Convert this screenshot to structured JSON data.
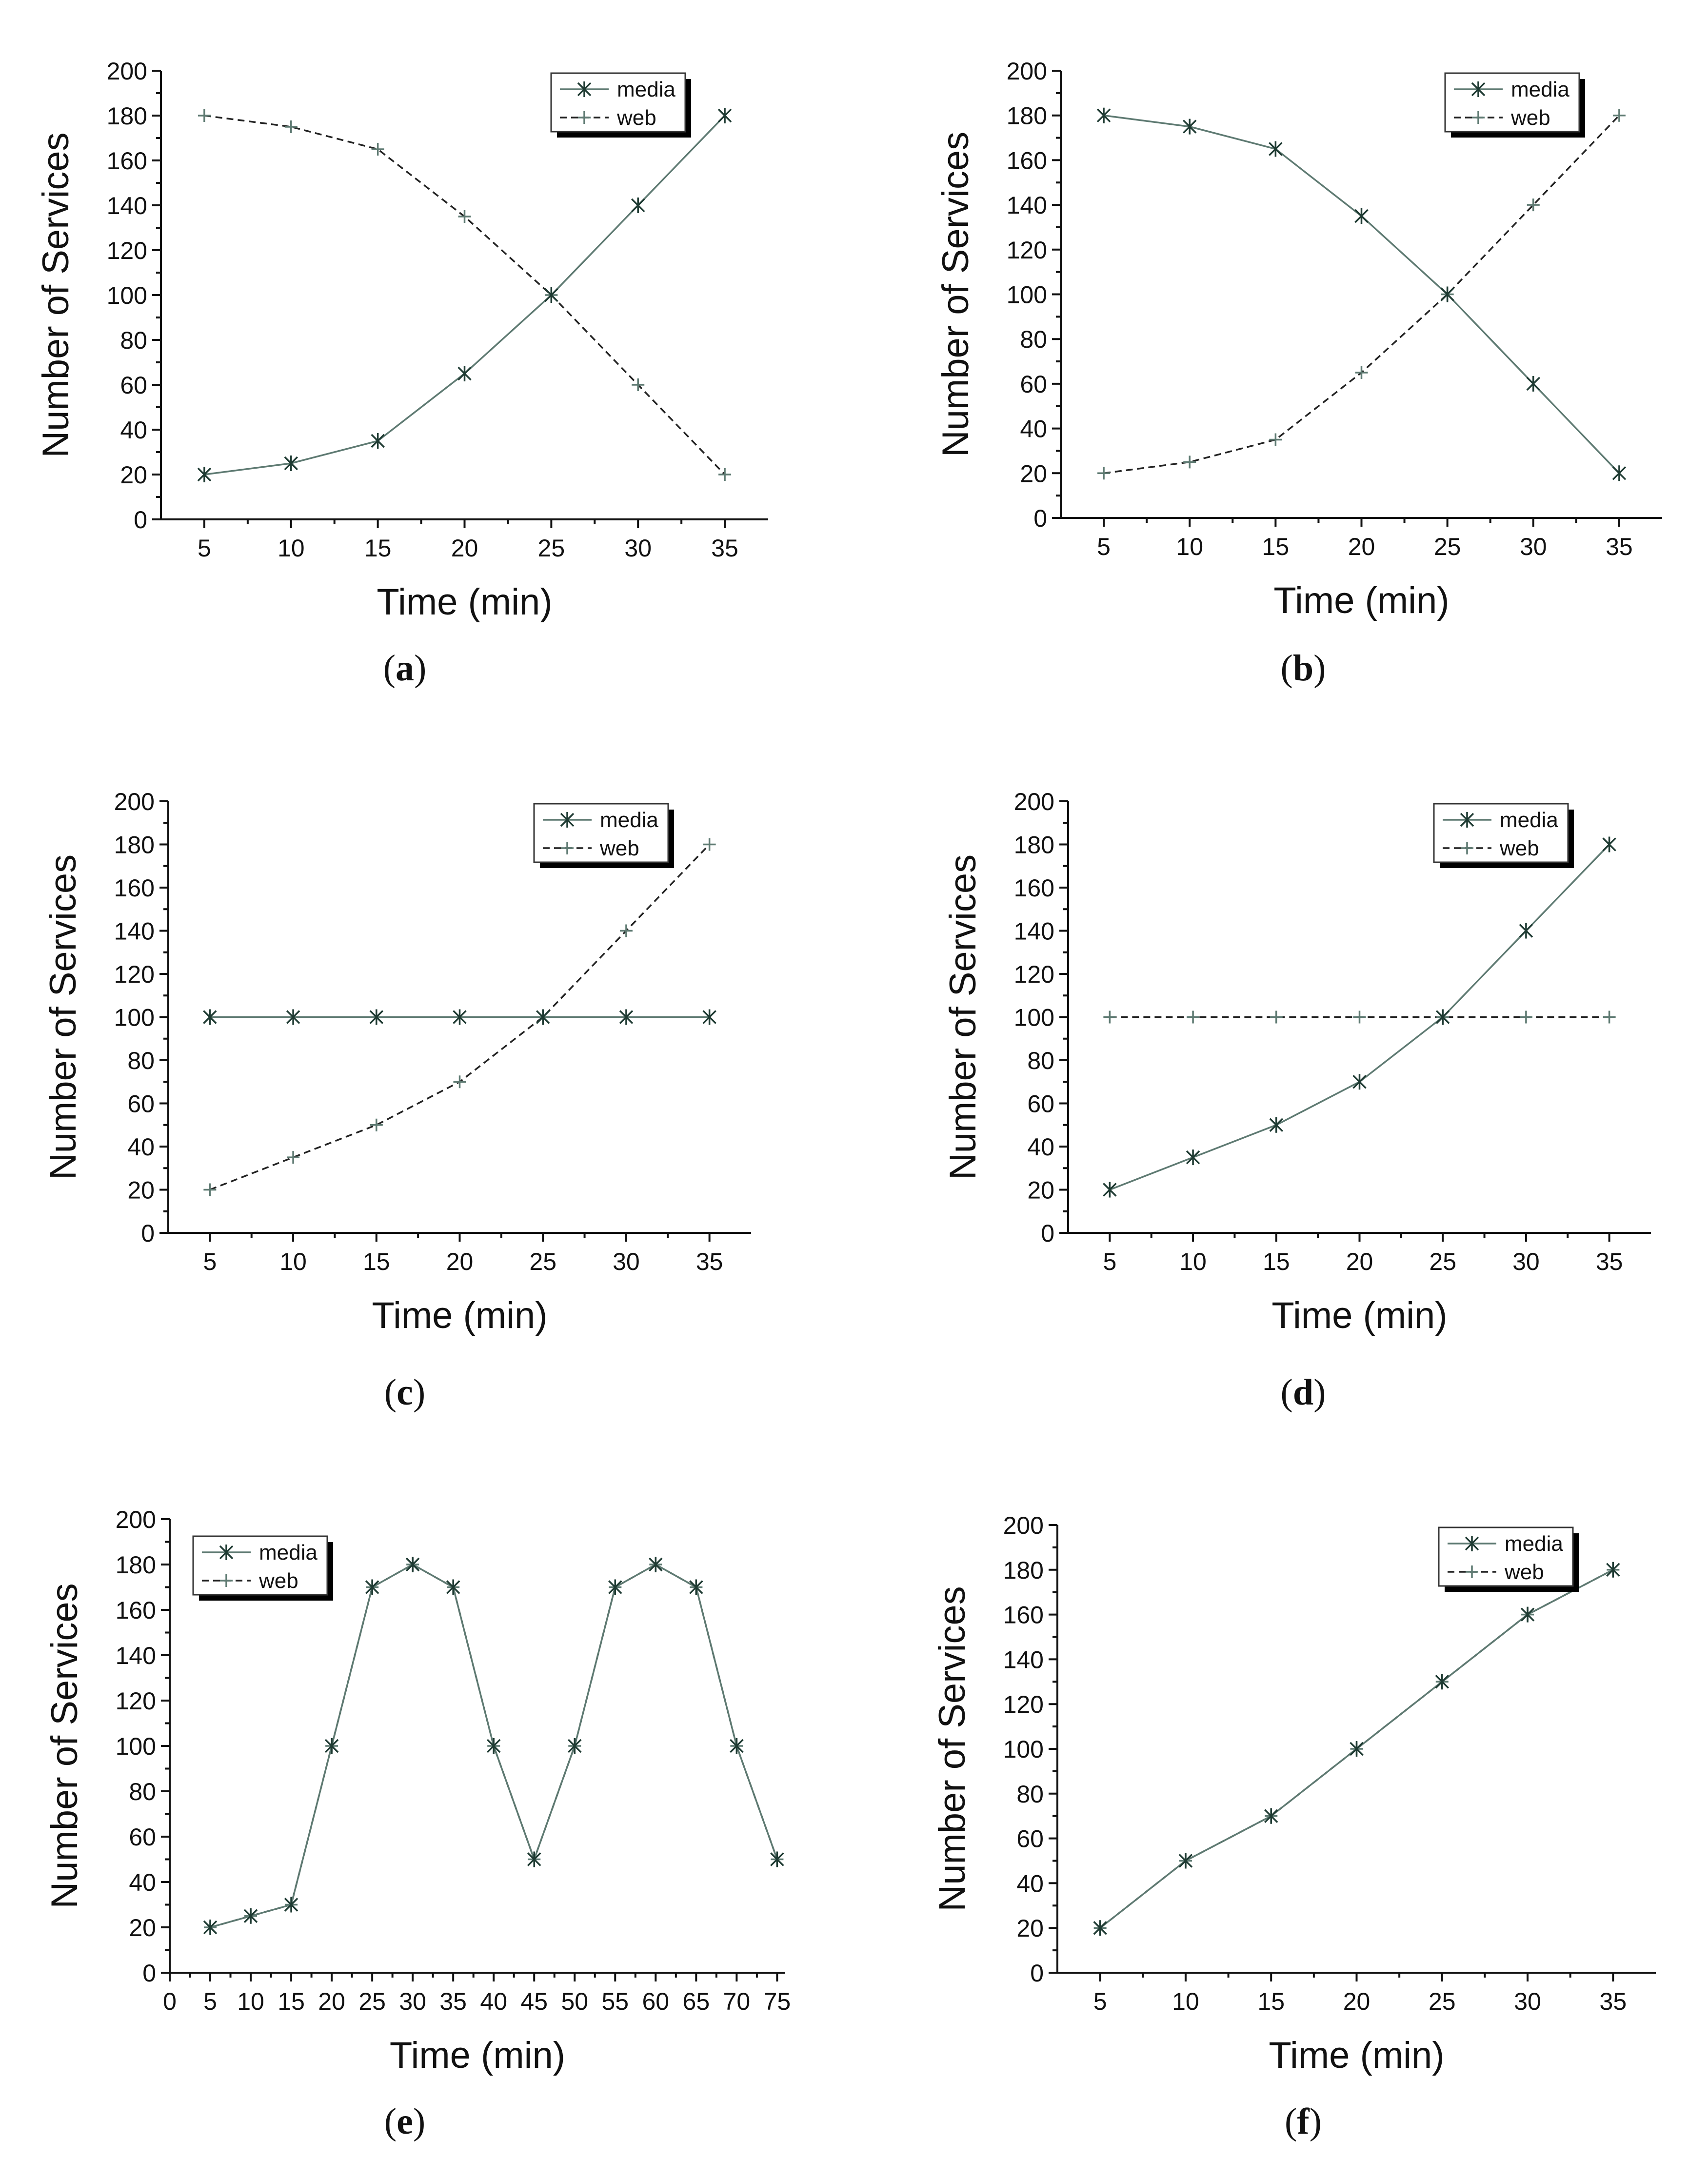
{
  "figure": {
    "series_names": [
      "media",
      "web"
    ],
    "colors": {
      "media_line": "#5e7a72",
      "media_marker": "#1f3b33",
      "web_line": "#222222",
      "web_marker": "#5e7a72"
    }
  },
  "chart_data": [
    {
      "id": "a",
      "panel_label": "a",
      "type": "line",
      "xlabel": "Time (min)",
      "ylabel": "Number of Services",
      "xlim": [
        2.5,
        37.5
      ],
      "ylim": [
        0,
        200
      ],
      "x_ticks": [
        5,
        10,
        15,
        20,
        25,
        30,
        35
      ],
      "y_ticks": [
        0,
        20,
        40,
        60,
        80,
        100,
        120,
        140,
        160,
        180,
        200
      ],
      "x_minor": [],
      "legend_position": "top-right",
      "series": [
        {
          "name": "media",
          "style": "solid",
          "marker": "asterisk",
          "x": [
            5,
            10,
            15,
            20,
            25,
            30,
            35
          ],
          "values": [
            20,
            25,
            35,
            65,
            100,
            140,
            180
          ]
        },
        {
          "name": "web",
          "style": "dashed",
          "marker": "plus",
          "x": [
            5,
            10,
            15,
            20,
            25,
            30,
            35
          ],
          "values": [
            180,
            175,
            165,
            135,
            100,
            60,
            20
          ]
        }
      ]
    },
    {
      "id": "b",
      "panel_label": "b",
      "type": "line",
      "xlabel": "Time (min)",
      "ylabel": "Number of Services",
      "xlim": [
        2.5,
        37.5
      ],
      "ylim": [
        0,
        200
      ],
      "x_ticks": [
        5,
        10,
        15,
        20,
        25,
        30,
        35
      ],
      "y_ticks": [
        0,
        20,
        40,
        60,
        80,
        100,
        120,
        140,
        160,
        180,
        200
      ],
      "x_minor": [],
      "legend_position": "top-right",
      "series": [
        {
          "name": "media",
          "style": "solid",
          "marker": "asterisk",
          "x": [
            5,
            10,
            15,
            20,
            25,
            30,
            35
          ],
          "values": [
            180,
            175,
            165,
            135,
            100,
            60,
            20
          ]
        },
        {
          "name": "web",
          "style": "dashed",
          "marker": "plus",
          "x": [
            5,
            10,
            15,
            20,
            25,
            30,
            35
          ],
          "values": [
            20,
            25,
            35,
            65,
            100,
            140,
            180
          ]
        }
      ]
    },
    {
      "id": "c",
      "panel_label": "c",
      "type": "line",
      "xlabel": "Time (min)",
      "ylabel": "Number of Services",
      "xlim": [
        2.5,
        37.5
      ],
      "ylim": [
        0,
        200
      ],
      "x_ticks": [
        5,
        10,
        15,
        20,
        25,
        30,
        35
      ],
      "y_ticks": [
        0,
        20,
        40,
        60,
        80,
        100,
        120,
        140,
        160,
        180,
        200
      ],
      "x_minor": [],
      "legend_position": "top-right",
      "series": [
        {
          "name": "media",
          "style": "solid",
          "marker": "asterisk",
          "x": [
            5,
            10,
            15,
            20,
            25,
            30,
            35
          ],
          "values": [
            100,
            100,
            100,
            100,
            100,
            100,
            100
          ]
        },
        {
          "name": "web",
          "style": "dashed",
          "marker": "plus",
          "x": [
            5,
            10,
            15,
            20,
            25,
            30,
            35
          ],
          "values": [
            20,
            35,
            50,
            70,
            100,
            140,
            180
          ]
        }
      ]
    },
    {
      "id": "d",
      "panel_label": "d",
      "type": "line",
      "xlabel": "Time (min)",
      "ylabel": "Number of Services",
      "xlim": [
        2.5,
        37.5
      ],
      "ylim": [
        0,
        200
      ],
      "x_ticks": [
        5,
        10,
        15,
        20,
        25,
        30,
        35
      ],
      "y_ticks": [
        0,
        20,
        40,
        60,
        80,
        100,
        120,
        140,
        160,
        180,
        200
      ],
      "x_minor": [],
      "legend_position": "top-right",
      "series": [
        {
          "name": "media",
          "style": "solid",
          "marker": "asterisk",
          "x": [
            5,
            10,
            15,
            20,
            25,
            30,
            35
          ],
          "values": [
            20,
            35,
            50,
            70,
            100,
            140,
            180
          ]
        },
        {
          "name": "web",
          "style": "dashed",
          "marker": "plus",
          "x": [
            5,
            10,
            15,
            20,
            25,
            30,
            35
          ],
          "values": [
            100,
            100,
            100,
            100,
            100,
            100,
            100
          ]
        }
      ]
    },
    {
      "id": "e",
      "panel_label": "e",
      "type": "line",
      "xlabel": "Time (min)",
      "ylabel": "Number of Services",
      "xlim": [
        0,
        76
      ],
      "ylim": [
        0,
        200
      ],
      "x_ticks": [
        0,
        5,
        10,
        15,
        20,
        25,
        30,
        35,
        40,
        45,
        50,
        55,
        60,
        65,
        70,
        75
      ],
      "y_ticks": [
        0,
        20,
        40,
        60,
        80,
        100,
        120,
        140,
        160,
        180,
        200
      ],
      "x_minor": [],
      "legend_position": "top-left",
      "series": [
        {
          "name": "media",
          "style": "solid",
          "marker": "asterisk",
          "x": [
            5,
            10,
            15,
            20,
            25,
            30,
            35,
            40,
            45,
            50,
            55,
            60,
            65,
            70,
            75
          ],
          "values": [
            20,
            25,
            30,
            100,
            170,
            180,
            170,
            100,
            50,
            100,
            170,
            180,
            170,
            100,
            50
          ]
        },
        {
          "name": "web",
          "style": "dashed",
          "marker": "plus",
          "x": [
            5,
            10,
            15,
            20,
            25,
            30,
            35,
            40,
            45,
            50,
            55,
            60,
            65,
            70,
            75
          ],
          "values": [
            20,
            25,
            30,
            100,
            170,
            180,
            170,
            100,
            50,
            100,
            170,
            180,
            170,
            100,
            50
          ]
        }
      ]
    },
    {
      "id": "f",
      "panel_label": "f",
      "type": "line",
      "xlabel": "Time (min)",
      "ylabel": "Number of Services",
      "xlim": [
        2.5,
        37.5
      ],
      "ylim": [
        0,
        200
      ],
      "x_ticks": [
        5,
        10,
        15,
        20,
        25,
        30,
        35
      ],
      "y_ticks": [
        0,
        20,
        40,
        60,
        80,
        100,
        120,
        140,
        160,
        180,
        200
      ],
      "x_minor": [],
      "legend_position": "top-right",
      "series": [
        {
          "name": "media",
          "style": "solid",
          "marker": "asterisk",
          "x": [
            5,
            10,
            15,
            20,
            25,
            30,
            35
          ],
          "values": [
            20,
            50,
            70,
            100,
            130,
            160,
            180
          ]
        },
        {
          "name": "web",
          "style": "dashed",
          "marker": "plus",
          "x": [
            5,
            10,
            15,
            20,
            25,
            30,
            35
          ],
          "values": [
            20,
            50,
            70,
            100,
            130,
            160,
            180
          ]
        }
      ]
    }
  ]
}
